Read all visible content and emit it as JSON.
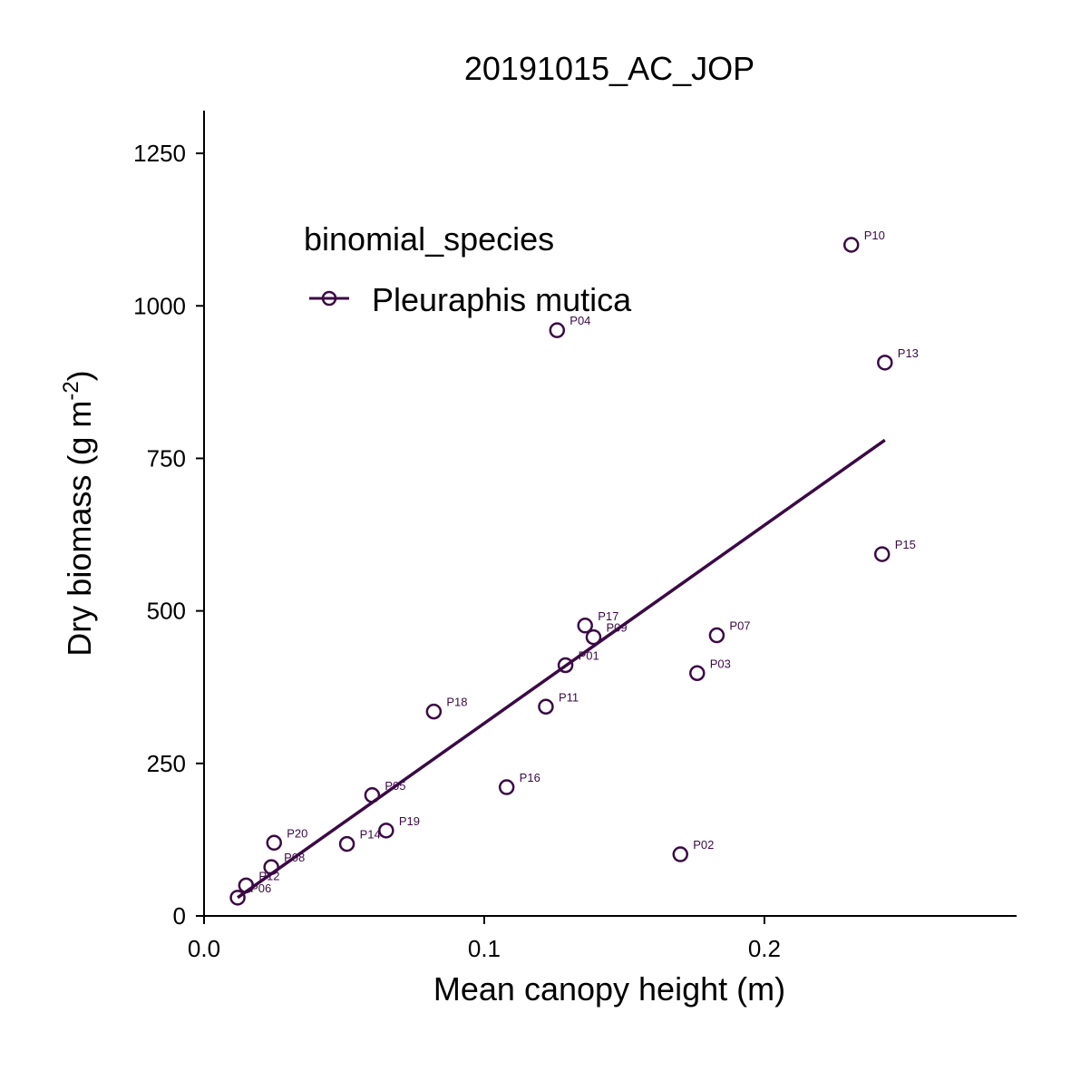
{
  "chart_data": {
    "type": "scatter",
    "title": "20191015_AC_JOP",
    "xlabel": "Mean canopy height (m)",
    "ylabel_main": "Dry biomass (g m",
    "ylabel_sup": "-2",
    "ylabel_close": ")",
    "xlim": [
      0.0,
      0.29
    ],
    "ylim": [
      0,
      1320
    ],
    "x_ticks": [
      {
        "value": 0.0,
        "label": "0.0"
      },
      {
        "value": 0.1,
        "label": "0.1"
      },
      {
        "value": 0.2,
        "label": "0.2"
      }
    ],
    "y_ticks": [
      {
        "value": 0,
        "label": "0"
      },
      {
        "value": 250,
        "label": "250"
      },
      {
        "value": 500,
        "label": "500"
      },
      {
        "value": 750,
        "label": "750"
      },
      {
        "value": 1000,
        "label": "1000"
      },
      {
        "value": 1250,
        "label": "1250"
      }
    ],
    "grid": false,
    "legend": {
      "title": "binomial_species",
      "placement": "top-left",
      "entries": [
        "Pleuraphis mutica"
      ]
    },
    "series": [
      {
        "name": "Pleuraphis mutica",
        "color": "#3b0a45",
        "points": [
          {
            "label": "P10",
            "x": 0.231,
            "y": 1100
          },
          {
            "label": "P04",
            "x": 0.126,
            "y": 960
          },
          {
            "label": "P13",
            "x": 0.243,
            "y": 907
          },
          {
            "label": "P15",
            "x": 0.242,
            "y": 593
          },
          {
            "label": "P17",
            "x": 0.136,
            "y": 476
          },
          {
            "label": "P09",
            "x": 0.139,
            "y": 457
          },
          {
            "label": "P07",
            "x": 0.183,
            "y": 460
          },
          {
            "label": "P01",
            "x": 0.129,
            "y": 411
          },
          {
            "label": "P03",
            "x": 0.176,
            "y": 398
          },
          {
            "label": "P11",
            "x": 0.122,
            "y": 343
          },
          {
            "label": "P18",
            "x": 0.082,
            "y": 335
          },
          {
            "label": "P16",
            "x": 0.108,
            "y": 211
          },
          {
            "label": "P05",
            "x": 0.06,
            "y": 198
          },
          {
            "label": "P19",
            "x": 0.065,
            "y": 140
          },
          {
            "label": "P14",
            "x": 0.051,
            "y": 118
          },
          {
            "label": "P20",
            "x": 0.025,
            "y": 120
          },
          {
            "label": "P02",
            "x": 0.17,
            "y": 101
          },
          {
            "label": "P08",
            "x": 0.024,
            "y": 80
          },
          {
            "label": "P12",
            "x": 0.015,
            "y": 50
          },
          {
            "label": "P06",
            "x": 0.012,
            "y": 30
          }
        ],
        "fit_line": {
          "x": [
            0.012,
            0.243
          ],
          "y": [
            30,
            780
          ]
        }
      }
    ]
  }
}
